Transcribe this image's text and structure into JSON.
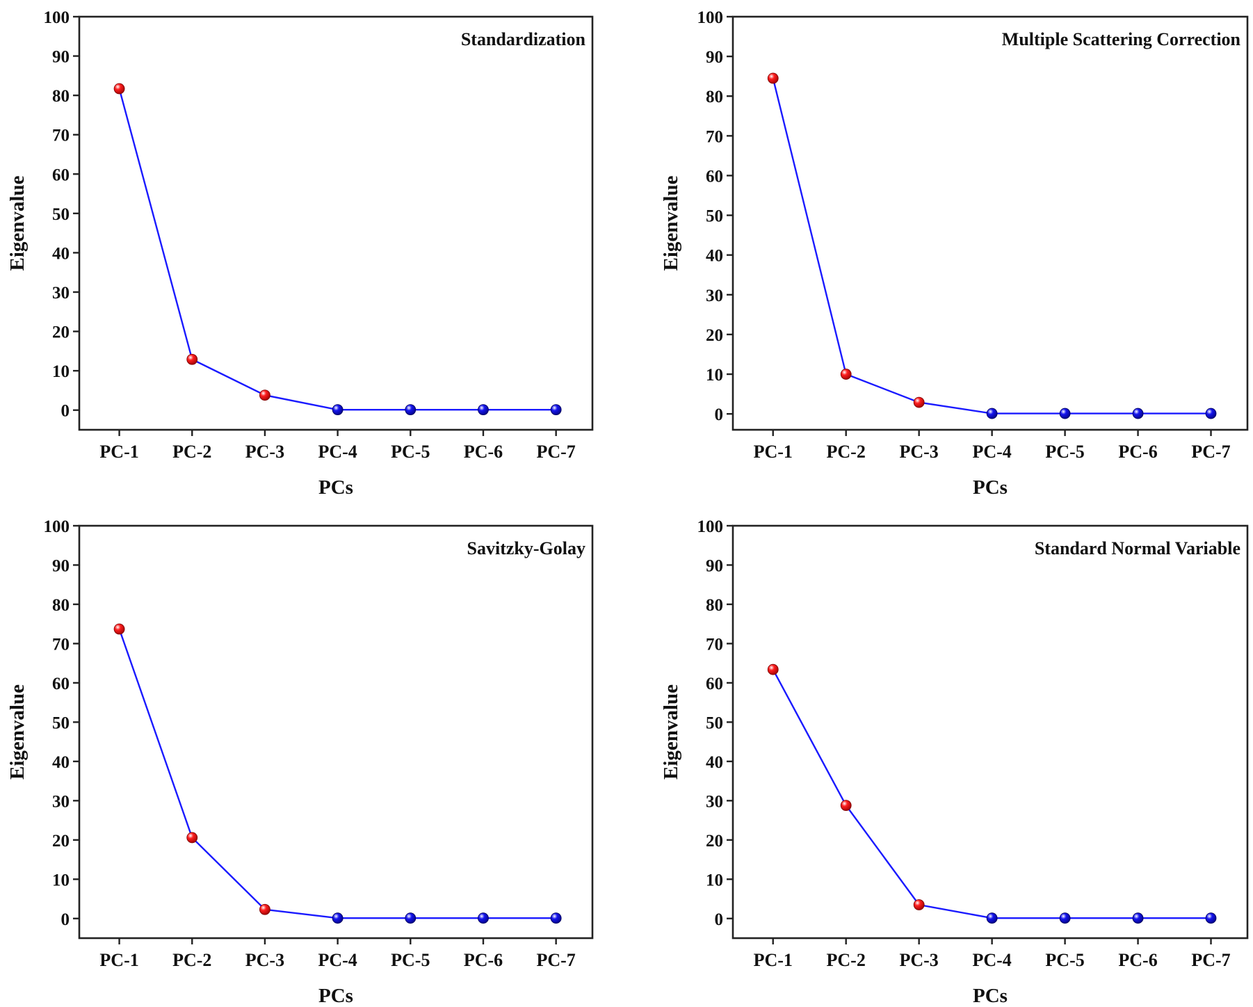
{
  "colors": {
    "line": "#1a1aff",
    "highlight_point": "#ff1010",
    "normal_point": "#1010ee",
    "axis": "#222222"
  },
  "chart_data": [
    {
      "type": "line",
      "title": "Standardization",
      "categories": [
        "PC-1",
        "PC-2",
        "PC-3",
        "PC-4",
        "PC-5",
        "PC-6",
        "PC-7"
      ],
      "values": [
        81.7,
        12.9,
        3.8,
        0.1,
        0.1,
        0.1,
        0.1
      ],
      "highlighted_points": [
        true,
        true,
        true,
        false,
        false,
        false,
        false
      ],
      "xlabel": "PCs",
      "ylabel": "Eigenvalue",
      "ylim": [
        -5,
        100
      ],
      "yticks": [
        "0",
        "10",
        "20",
        "30",
        "40",
        "50",
        "60",
        "70",
        "80",
        "90",
        "100"
      ]
    },
    {
      "type": "line",
      "title": "Multiple Scattering Correction",
      "categories": [
        "PC-1",
        "PC-2",
        "PC-3",
        "PC-4",
        "PC-5",
        "PC-6",
        "PC-7"
      ],
      "values": [
        84.5,
        10.0,
        2.9,
        0.1,
        0.1,
        0.1,
        0.1
      ],
      "highlighted_points": [
        true,
        true,
        true,
        false,
        false,
        false,
        false
      ],
      "xlabel": "PCs",
      "ylabel": "Eigenvalue",
      "ylim": [
        -4,
        100
      ],
      "yticks": [
        "0",
        "10",
        "20",
        "30",
        "40",
        "50",
        "60",
        "70",
        "80",
        "90",
        "100"
      ]
    },
    {
      "type": "line",
      "title": "Savitzky-Golay",
      "categories": [
        "PC-1",
        "PC-2",
        "PC-3",
        "PC-4",
        "PC-5",
        "PC-6",
        "PC-7"
      ],
      "values": [
        73.7,
        20.6,
        2.3,
        0.1,
        0.1,
        0.1,
        0.1
      ],
      "highlighted_points": [
        true,
        true,
        true,
        false,
        false,
        false,
        false
      ],
      "xlabel": "PCs",
      "ylabel": "Eigenvalue",
      "ylim": [
        -5,
        100
      ],
      "yticks": [
        "0",
        "10",
        "20",
        "30",
        "40",
        "50",
        "60",
        "70",
        "80",
        "90",
        "100"
      ]
    },
    {
      "type": "line",
      "title": "Standard Normal Variable",
      "categories": [
        "PC-1",
        "PC-2",
        "PC-3",
        "PC-4",
        "PC-5",
        "PC-6",
        "PC-7"
      ],
      "values": [
        63.4,
        28.8,
        3.5,
        0.1,
        0.1,
        0.1,
        0.1
      ],
      "highlighted_points": [
        true,
        true,
        true,
        false,
        false,
        false,
        false
      ],
      "xlabel": "PCs",
      "ylabel": "Eigenvalue",
      "ylim": [
        -5,
        100
      ],
      "yticks": [
        "0",
        "10",
        "20",
        "30",
        "40",
        "50",
        "60",
        "70",
        "80",
        "90",
        "100"
      ]
    }
  ]
}
